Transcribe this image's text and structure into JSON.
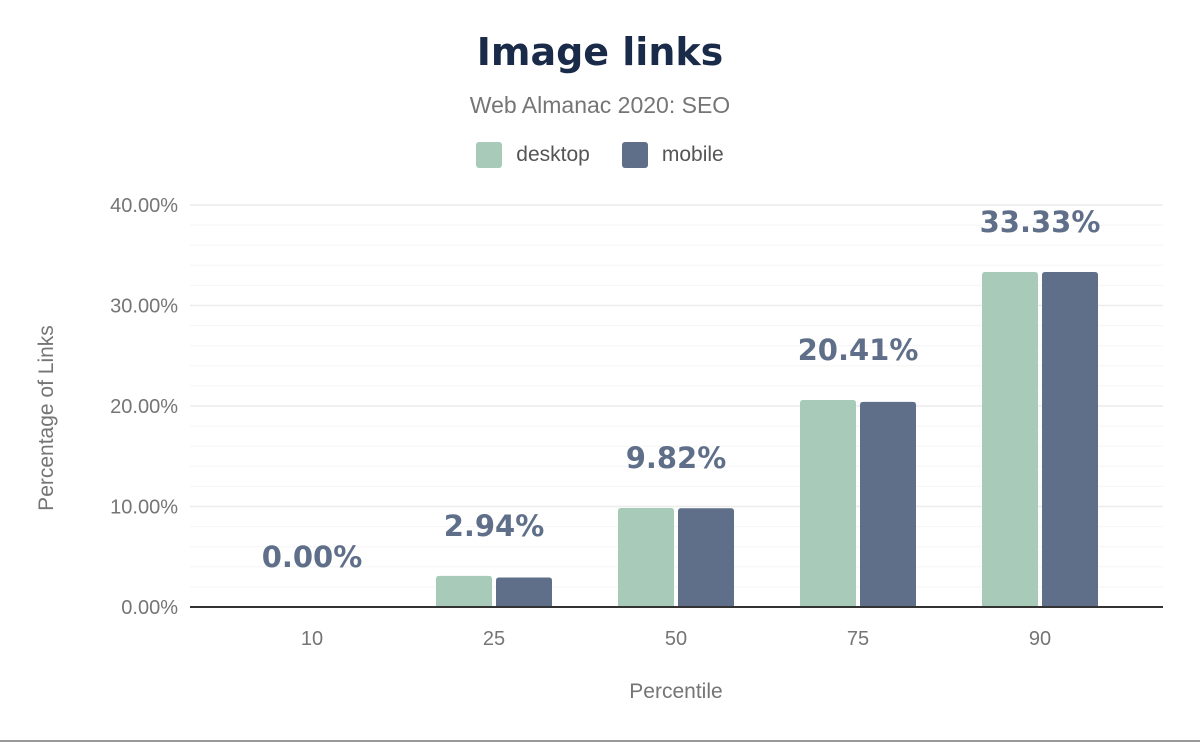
{
  "chart_data": {
    "type": "bar",
    "title": "Image links",
    "subtitle": "Web Almanac 2020: SEO",
    "xlabel": "Percentile",
    "ylabel": "Percentage of Links",
    "categories": [
      "10",
      "25",
      "50",
      "75",
      "90"
    ],
    "series": [
      {
        "name": "desktop",
        "color": "#a8cbb9",
        "values": [
          0,
          3.1,
          9.85,
          20.6,
          33.33
        ]
      },
      {
        "name": "mobile",
        "color": "#5f6f89",
        "values": [
          0,
          2.94,
          9.82,
          20.41,
          33.33
        ]
      }
    ],
    "data_labels": [
      "0.00%",
      "2.94%",
      "9.82%",
      "20.41%",
      "33.33%"
    ],
    "ylim": [
      0,
      40
    ],
    "yticks": [
      "0.00%",
      "10.00%",
      "20.00%",
      "30.00%",
      "40.00%"
    ],
    "grid": true,
    "legend_position": "top"
  }
}
